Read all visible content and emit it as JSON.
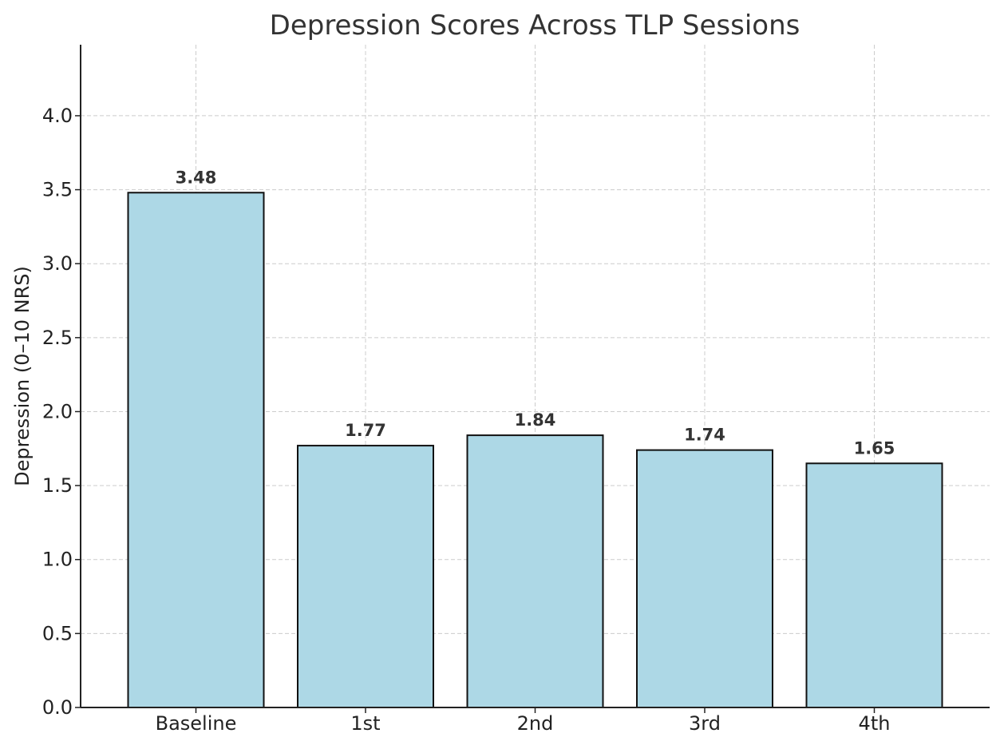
{
  "chart_data": {
    "type": "bar",
    "title": "Depression Scores Across TLP Sessions",
    "xlabel": "",
    "ylabel": "Depression (0–10 NRS)",
    "categories": [
      "Baseline",
      "1st",
      "2nd",
      "3rd",
      "4th"
    ],
    "values": [
      3.48,
      1.77,
      1.84,
      1.74,
      1.65
    ],
    "data_labels": [
      "3.48",
      "1.77",
      "1.84",
      "1.74",
      "1.65"
    ],
    "ylim": [
      0,
      4.48
    ],
    "yticks": [
      0.0,
      0.5,
      1.0,
      1.5,
      2.0,
      2.5,
      3.0,
      3.5,
      4.0
    ],
    "ytick_labels": [
      "0.0",
      "0.5",
      "1.0",
      "1.5",
      "2.0",
      "2.5",
      "3.0",
      "3.5",
      "4.0"
    ],
    "grid": true,
    "bar_color": "#add8e6",
    "bar_edge_color": "#111111"
  }
}
